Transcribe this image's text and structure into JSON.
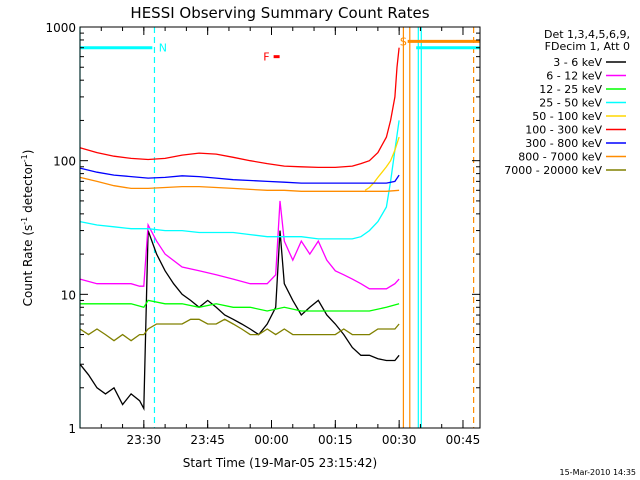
{
  "chart_data": {
    "type": "line",
    "title": "HESSI Observing Summary Count Rates",
    "xlabel": "Start Time (19-Mar-05 23:15:42)",
    "ylabel_main": "Count Rate (s",
    "ylabel_sup1": "-1",
    "ylabel_mid": " detector",
    "ylabel_sup2": "-1",
    "ylabel_end": ")",
    "yscale": "log",
    "ylim": [
      1,
      1000
    ],
    "xlim_minutes": [
      0,
      94
    ],
    "x_ticks": [
      {
        "minute": 15,
        "label": "23:30"
      },
      {
        "minute": 30,
        "label": "23:45"
      },
      {
        "minute": 45,
        "label": "00:00"
      },
      {
        "minute": 60,
        "label": "00:15"
      },
      {
        "minute": 75,
        "label": "00:30"
      },
      {
        "minute": 90,
        "label": "00:45"
      }
    ],
    "y_ticks": [
      {
        "value": 1,
        "label": "1"
      },
      {
        "value": 10,
        "label": "10"
      },
      {
        "value": 100,
        "label": "100"
      },
      {
        "value": 1000,
        "label": "1000"
      }
    ],
    "legend_header": [
      "Det 1,3,4,5,6,9,",
      "FDecim 1, Att 0"
    ],
    "series": [
      {
        "name": "3 - 6 keV",
        "color": "#000000",
        "x": [
          0,
          2,
          4,
          6,
          8,
          10,
          12,
          14,
          15,
          16,
          18,
          20,
          22,
          24,
          26,
          28,
          30,
          32,
          34,
          36,
          38,
          40,
          42,
          44,
          46,
          47,
          48,
          50,
          52,
          54,
          56,
          58,
          60,
          62,
          64,
          66,
          68,
          70,
          72,
          74,
          75
        ],
        "y": [
          3,
          2.5,
          2,
          1.8,
          2,
          1.5,
          1.8,
          1.6,
          1.4,
          30,
          20,
          15,
          12,
          10,
          9,
          8,
          9,
          8,
          7,
          6.5,
          6,
          5.5,
          5,
          6,
          8,
          30,
          12,
          9,
          7,
          8,
          9,
          7,
          6,
          5,
          4,
          3.5,
          3.5,
          3.3,
          3.2,
          3.2,
          3.5
        ]
      },
      {
        "name": "6 - 12 keV",
        "color": "#ff00ff",
        "x": [
          0,
          4,
          8,
          12,
          14,
          15,
          16,
          18,
          20,
          24,
          28,
          32,
          36,
          40,
          44,
          46,
          47,
          48,
          50,
          52,
          54,
          56,
          58,
          60,
          62,
          64,
          66,
          68,
          70,
          72,
          74,
          75
        ],
        "y": [
          13,
          12,
          12,
          12,
          11.5,
          11.5,
          33,
          25,
          20,
          16,
          15,
          14,
          13,
          12,
          12,
          14,
          50,
          25,
          18,
          25,
          20,
          25,
          18,
          15,
          14,
          13,
          12,
          11,
          11,
          11,
          12,
          13
        ]
      },
      {
        "name": "12 - 25 keV",
        "color": "#00ff00",
        "x": [
          0,
          4,
          8,
          12,
          15,
          16,
          20,
          24,
          28,
          32,
          36,
          40,
          44,
          48,
          52,
          56,
          60,
          64,
          68,
          72,
          75
        ],
        "y": [
          8.5,
          8.5,
          8.5,
          8.5,
          8,
          9,
          8.5,
          8.5,
          8,
          8.5,
          8,
          8,
          7.5,
          8,
          7.5,
          7.5,
          7.5,
          7.5,
          7.5,
          8,
          8.5
        ]
      },
      {
        "name": "25 - 50 keV",
        "color": "#00ffff",
        "x": [
          0,
          4,
          8,
          12,
          16,
          20,
          24,
          28,
          32,
          36,
          40,
          44,
          48,
          52,
          56,
          60,
          64,
          66,
          68,
          70,
          72,
          73,
          74,
          75
        ],
        "y": [
          35,
          33,
          32,
          31,
          31,
          30,
          30,
          29,
          29,
          29,
          28,
          27,
          27,
          27,
          26,
          26,
          26,
          27,
          30,
          35,
          45,
          70,
          120,
          200
        ]
      },
      {
        "name": "50 - 100 keV",
        "color": "#ffd700",
        "x": [
          67,
          68,
          69,
          70,
          71,
          72,
          73,
          74,
          75
        ],
        "y": [
          60,
          63,
          68,
          75,
          82,
          90,
          100,
          120,
          150
        ]
      },
      {
        "name": "100 - 300 keV",
        "color": "#ff0000",
        "x": [
          0,
          4,
          8,
          12,
          16,
          20,
          24,
          28,
          32,
          36,
          40,
          44,
          48,
          52,
          56,
          60,
          64,
          66,
          68,
          70,
          72,
          73,
          74,
          74.5,
          75
        ],
        "y": [
          125,
          115,
          108,
          104,
          102,
          104,
          110,
          114,
          112,
          106,
          100,
          95,
          91,
          90,
          89,
          89,
          91,
          95,
          100,
          115,
          150,
          200,
          300,
          500,
          700
        ]
      },
      {
        "name": "300 - 800 keV",
        "color": "#0000ff",
        "x": [
          0,
          4,
          8,
          12,
          16,
          20,
          24,
          28,
          32,
          36,
          40,
          44,
          48,
          52,
          56,
          60,
          64,
          68,
          72,
          74,
          75
        ],
        "y": [
          88,
          82,
          78,
          76,
          74,
          75,
          77,
          76,
          74,
          72,
          71,
          70,
          69,
          68,
          68,
          68,
          68,
          68,
          68,
          70,
          78
        ]
      },
      {
        "name": "800 - 7000 keV",
        "color": "#ff8c00",
        "x": [
          0,
          4,
          8,
          12,
          16,
          20,
          24,
          28,
          32,
          36,
          40,
          44,
          48,
          52,
          56,
          60,
          64,
          68,
          72,
          75
        ],
        "y": [
          75,
          70,
          65,
          62,
          62,
          63,
          64,
          64,
          63,
          62,
          61,
          60,
          60,
          59,
          59,
          59,
          59,
          59,
          59,
          60
        ]
      },
      {
        "name": "7000 - 20000 keV",
        "color": "#808000",
        "x": [
          0,
          2,
          4,
          6,
          8,
          10,
          12,
          14,
          15,
          16,
          18,
          20,
          22,
          24,
          26,
          28,
          30,
          32,
          34,
          36,
          38,
          40,
          42,
          44,
          46,
          48,
          50,
          52,
          54,
          56,
          58,
          60,
          62,
          64,
          66,
          68,
          70,
          72,
          74,
          75
        ],
        "y": [
          5.5,
          5,
          5.5,
          5,
          4.5,
          5,
          4.5,
          5,
          5,
          5.5,
          6,
          6,
          6,
          6,
          6.5,
          6.5,
          6,
          6,
          6.5,
          6,
          5.5,
          5,
          5,
          5.5,
          5,
          5.5,
          5,
          5,
          5,
          5,
          5,
          5,
          5.5,
          5,
          5,
          5,
          5.5,
          5.5,
          5.5,
          6
        ]
      }
    ],
    "attenuator_state": {
      "color": "#00ffff",
      "segments": [
        [
          0,
          17,
          700
        ],
        [
          79,
          94,
          700
        ]
      ],
      "label_n": "N"
    },
    "spacecraft_state": {
      "color": "#ff8c00",
      "segments": [
        [
          77,
          94,
          780
        ]
      ],
      "label_s": "S"
    },
    "flare_flag": {
      "label": "F",
      "color": "#ff0000",
      "minute": 45.5,
      "value": 600
    },
    "vertical_markers": [
      {
        "minute": 17.5,
        "color": "#00ffff",
        "style": "dashed"
      },
      {
        "minute": 76.0,
        "color": "#ff8c00",
        "style": "solid"
      },
      {
        "minute": 77.5,
        "color": "#ff8c00",
        "style": "solid"
      },
      {
        "minute": 79.5,
        "color": "#00ffff",
        "style": "solid"
      },
      {
        "minute": 92.5,
        "color": "#ff8c00",
        "style": "dashed"
      },
      {
        "minute": 0,
        "color": "#00ffff",
        "style": "solid"
      },
      {
        "minute": 80.2,
        "color": "#00ffff",
        "style": "solid"
      }
    ],
    "grid": false,
    "legend_placement": "right"
  },
  "timestamp": "15-Mar-2010 14:35"
}
